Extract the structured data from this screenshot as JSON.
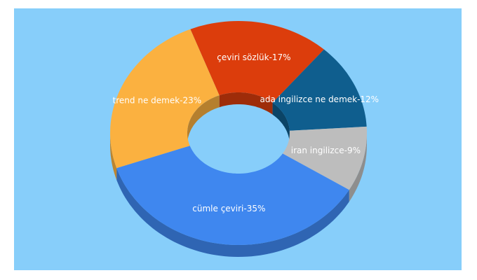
{
  "chart_data": {
    "type": "donut3d",
    "labels": [
      "çeviri sözlük-17%",
      "ada ingilizce ne demek-12%",
      "iran ingilizce-9%",
      "cümle çeviri-35%",
      "trend ne demek-23%"
    ],
    "values": [
      17,
      12,
      9,
      35,
      23
    ],
    "colors": [
      "#dc3d0c",
      "#0f5e8e",
      "#bdbdbd",
      "#3f87ef",
      "#fbb140"
    ]
  }
}
